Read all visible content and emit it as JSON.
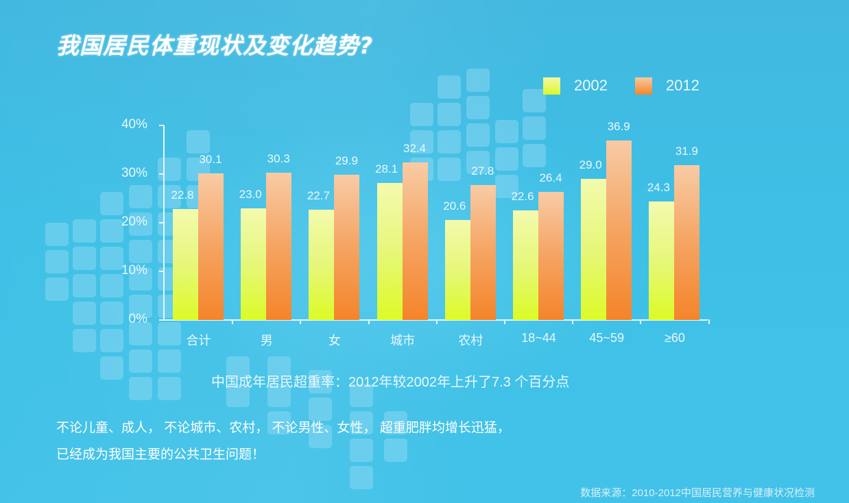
{
  "title": "我国居民体重现状及变化趋势?",
  "legend": [
    {
      "label": "2002",
      "color": "#dcf82a"
    },
    {
      "label": "2012",
      "color": "#f5852a"
    }
  ],
  "chart_data": {
    "type": "bar",
    "title": "我国居民体重现状及变化趋势?",
    "categories": [
      "合计",
      "男",
      "女",
      "城市",
      "农村",
      "18~44",
      "45~59",
      "≥60"
    ],
    "series": [
      {
        "name": "2002",
        "values": [
          22.8,
          23.0,
          22.7,
          28.1,
          20.6,
          22.6,
          29.0,
          24.3
        ],
        "color": "#dcf82a"
      },
      {
        "name": "2012",
        "values": [
          30.1,
          30.3,
          29.9,
          32.4,
          27.8,
          26.4,
          36.9,
          31.9
        ],
        "color": "#f5852a"
      }
    ],
    "value_labels": {
      "2002": [
        "22.8",
        "23.0",
        "22.7",
        "28.1",
        "20.6",
        "22.6",
        "29.0",
        "24.3"
      ],
      "2012": [
        "30.1",
        "30.3",
        "29.9",
        "32.4",
        "27.8",
        "26.4",
        "36.9",
        "31.9"
      ]
    },
    "ytick_labels": [
      "0%",
      "10%",
      "20%",
      "30%",
      "40%"
    ],
    "ylim": [
      0,
      40
    ],
    "xlabel": "",
    "ylabel": "",
    "grid": false,
    "legend_position": "top-right"
  },
  "summary": "中国成年居民超重率：2012年较2002年上升了7.3 个百分点",
  "notes": [
    "不论儿童、成人， 不论城市、农村， 不论男性、女性， 超重肥胖均增长迅猛，",
    "已经成为我国主要的公共卫生问题！"
  ],
  "source": "数据来源：2010-2012中国居民营养与健康状况检测"
}
